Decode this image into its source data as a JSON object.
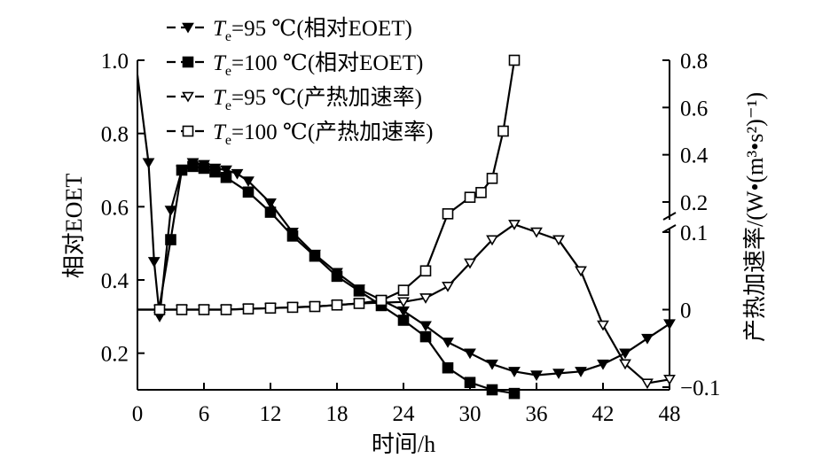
{
  "chart_data": {
    "type": "line",
    "title": "",
    "xlabel": "时间/h",
    "ylabel_left": "相对EOET",
    "ylabel_right": "产热加速率/(W•(m³•s²)⁻¹)",
    "x_ticks": [
      "0",
      "6",
      "12",
      "18",
      "24",
      "30",
      "36",
      "42",
      "48"
    ],
    "xlim": [
      0,
      48
    ],
    "ylim_left": [
      0.1,
      1.0
    ],
    "y_ticks_left": [
      "0.2",
      "0.4",
      "0.6",
      "0.8",
      "1.0"
    ],
    "y_ticks_right_upper": [
      "0.2",
      "0.4",
      "0.6",
      "0.8"
    ],
    "y_ticks_right_lower": [
      "−0.1",
      "0",
      "0.1"
    ],
    "right_axis_break": true,
    "legend_position": "top-left",
    "legend": [
      {
        "marker": "filled-triangle-down",
        "sym": "T",
        "sub": "e",
        "text": "=95 ℃(相对EOET)"
      },
      {
        "marker": "filled-square",
        "sym": "T",
        "sub": "e",
        "text": "=100 ℃(相对EOET)"
      },
      {
        "marker": "open-triangle-down",
        "sym": "T",
        "sub": "e",
        "text": "=95 ℃(产热加速率)"
      },
      {
        "marker": "open-square",
        "sym": "T",
        "sub": "e",
        "text": "=100 ℃(产热加速率)"
      }
    ],
    "series": [
      {
        "name": "Te=95 ℃(相对EOET)",
        "axis": "left",
        "marker": "filled-triangle-down",
        "x": [
          0,
          1,
          1.5,
          2,
          3,
          4,
          5,
          6,
          7,
          8,
          9,
          10,
          12,
          14,
          16,
          18,
          20,
          22,
          24,
          26,
          28,
          30,
          32,
          34,
          36,
          38,
          40,
          42,
          44,
          46,
          48
        ],
        "y": [
          0.96,
          0.72,
          0.45,
          0.3,
          0.59,
          0.7,
          0.72,
          0.715,
          0.705,
          0.7,
          0.69,
          0.67,
          0.61,
          0.53,
          0.47,
          0.42,
          0.375,
          0.345,
          0.315,
          0.275,
          0.23,
          0.2,
          0.17,
          0.15,
          0.14,
          0.145,
          0.15,
          0.17,
          0.2,
          0.24,
          0.28
        ]
      },
      {
        "name": "Te=100 ℃(相对EOET)",
        "axis": "left",
        "marker": "filled-square",
        "x": [
          2,
          3,
          4,
          5,
          6,
          7,
          8,
          10,
          12,
          14,
          16,
          18,
          20,
          22,
          24,
          26,
          28,
          30,
          32,
          34
        ],
        "y": [
          0.33,
          0.51,
          0.7,
          0.71,
          0.705,
          0.695,
          0.68,
          0.64,
          0.585,
          0.52,
          0.465,
          0.41,
          0.37,
          0.33,
          0.29,
          0.245,
          0.16,
          0.12,
          0.1,
          0.09
        ]
      },
      {
        "name": "Te=95 ℃(产热加速率)",
        "axis": "right",
        "marker": "open-triangle-down",
        "x": [
          0,
          2,
          4,
          6,
          8,
          10,
          12,
          14,
          16,
          18,
          20,
          22,
          24,
          26,
          28,
          30,
          32,
          34,
          36,
          38,
          40,
          42,
          44,
          46,
          48
        ],
        "y": [
          0.0,
          0.0,
          0.0,
          0.0,
          0.0,
          0.001,
          0.002,
          0.003,
          0.004,
          0.006,
          0.008,
          0.009,
          0.01,
          0.015,
          0.03,
          0.06,
          0.09,
          0.105,
          0.1,
          0.09,
          0.05,
          -0.02,
          -0.07,
          -0.095,
          -0.09
        ]
      },
      {
        "name": "Te=100 ℃(产热加速率)",
        "axis": "right",
        "marker": "open-square",
        "x": [
          0,
          2,
          4,
          6,
          8,
          10,
          12,
          14,
          16,
          18,
          20,
          22,
          24,
          26,
          28,
          30,
          31,
          32,
          33,
          34
        ],
        "y": [
          0.0,
          0.0,
          0.0,
          0.0,
          0.0,
          0.001,
          0.002,
          0.003,
          0.004,
          0.006,
          0.008,
          0.012,
          0.025,
          0.05,
          0.15,
          0.22,
          0.24,
          0.3,
          0.5,
          0.8
        ]
      }
    ]
  }
}
